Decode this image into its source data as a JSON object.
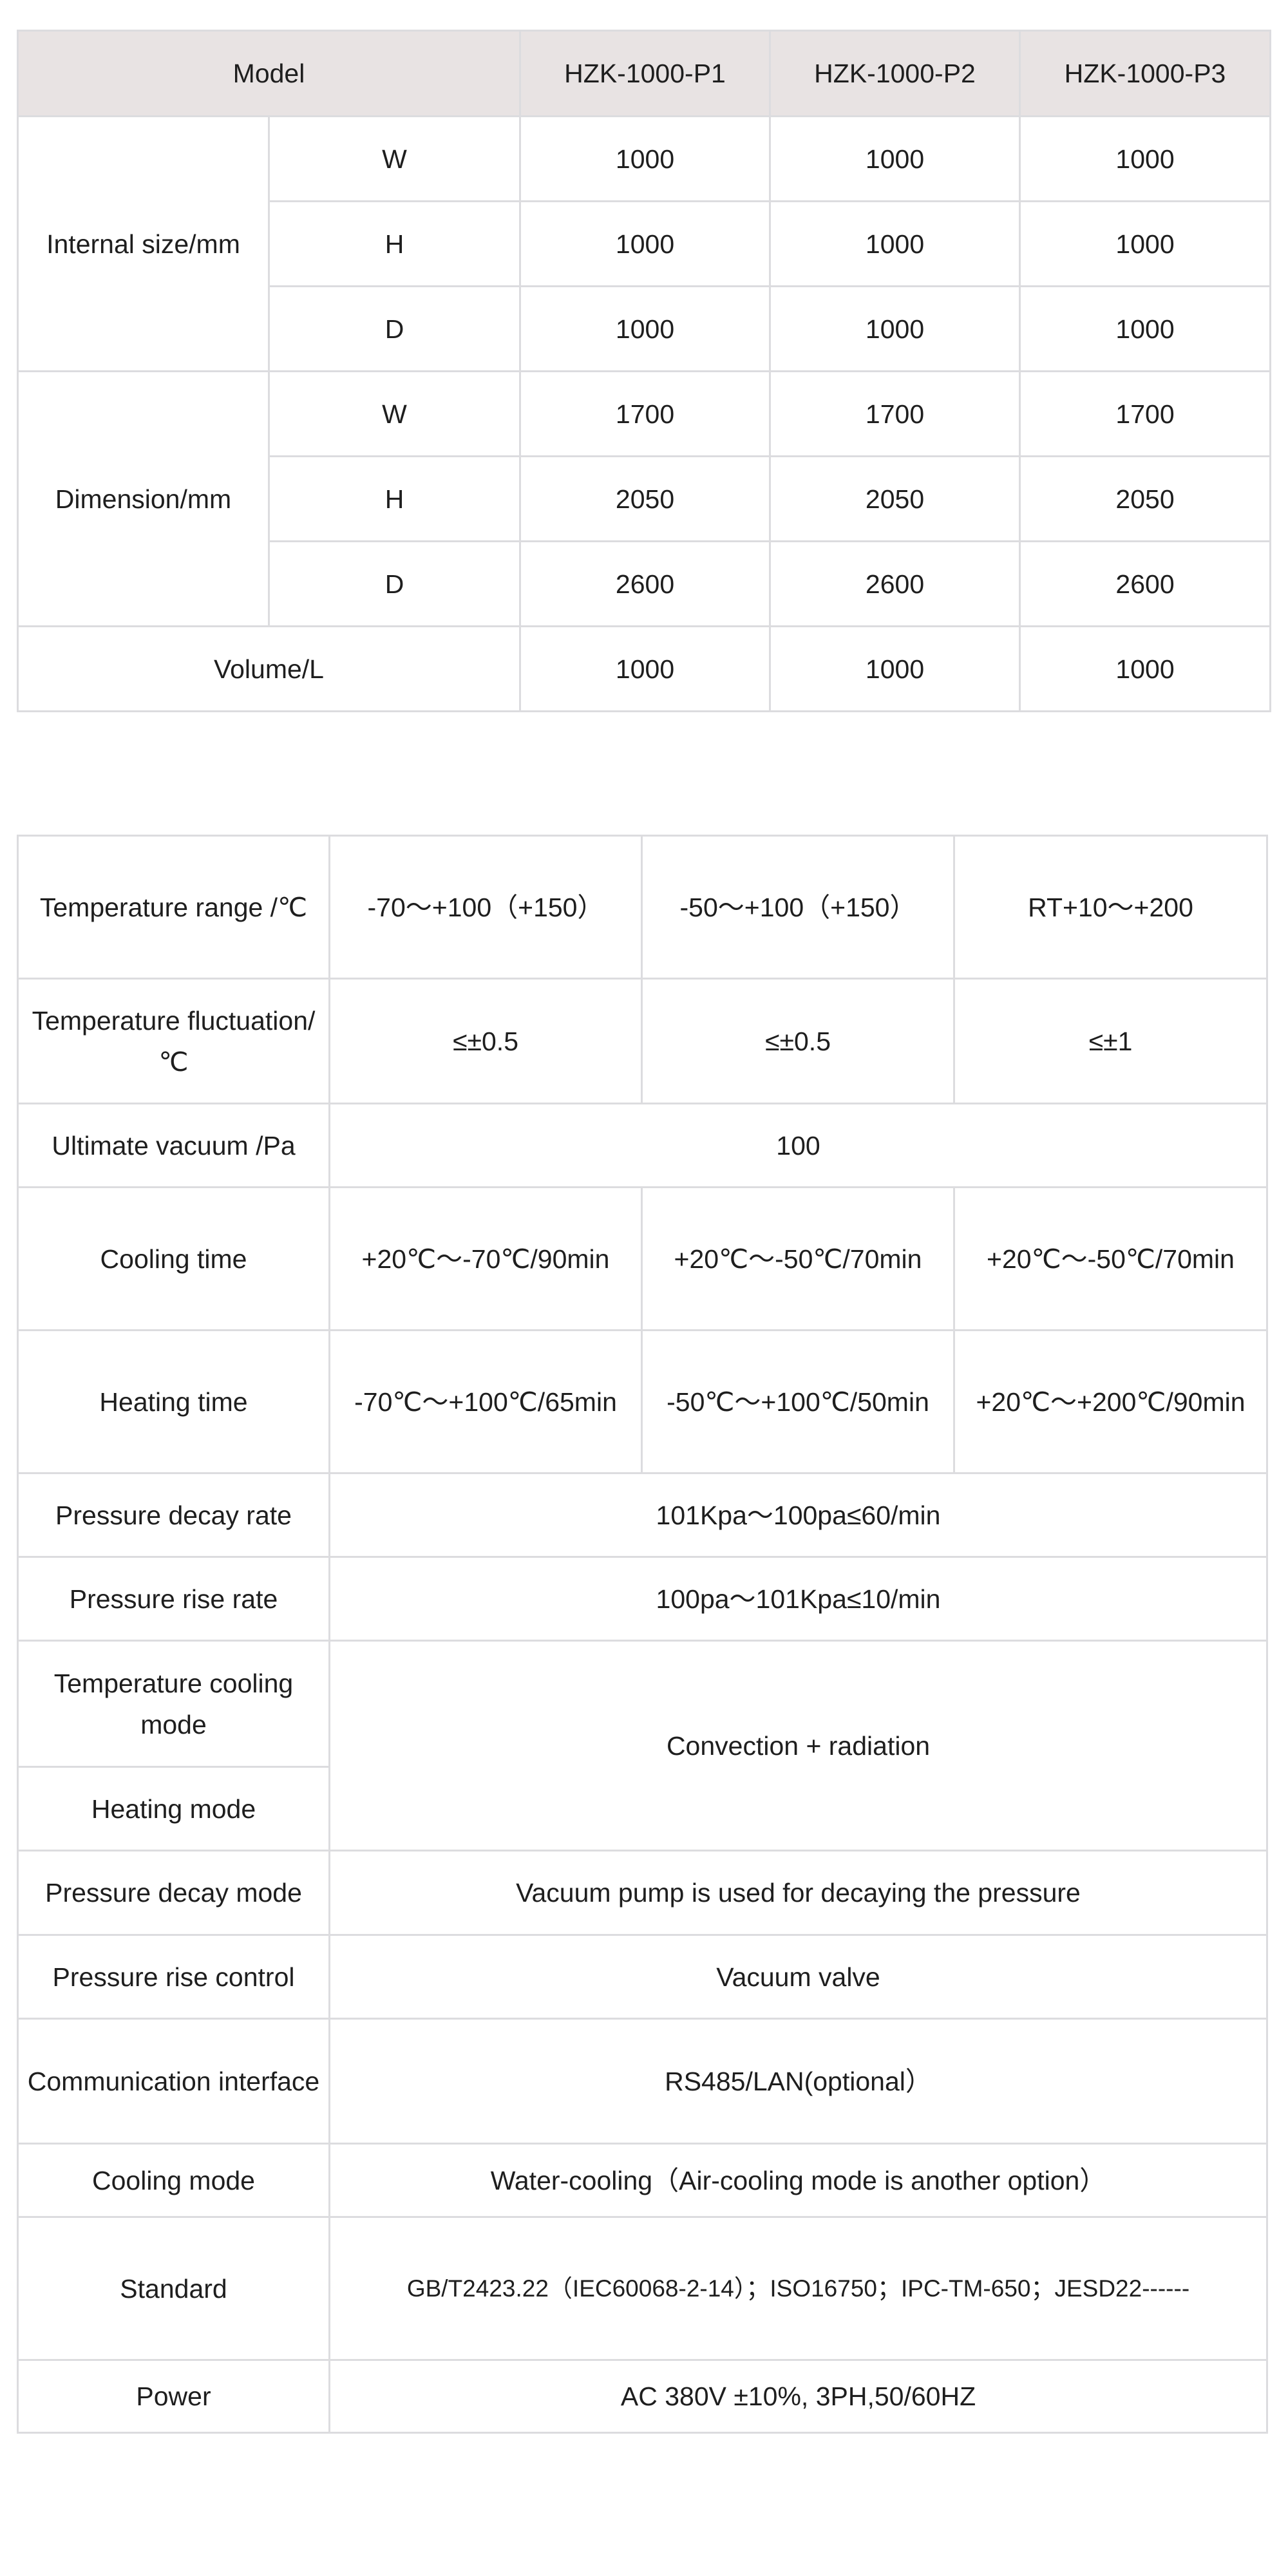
{
  "table1": {
    "header": {
      "model": "Model",
      "models": [
        "HZK-1000-P1",
        "HZK-1000-P2",
        "HZK-1000-P3"
      ]
    },
    "groups": [
      {
        "label": "Internal size/mm",
        "rows": [
          {
            "dim": "W",
            "values": [
              "1000",
              "1000",
              "1000"
            ]
          },
          {
            "dim": "H",
            "values": [
              "1000",
              "1000",
              "1000"
            ]
          },
          {
            "dim": "D",
            "values": [
              "1000",
              "1000",
              "1000"
            ]
          }
        ]
      },
      {
        "label": "Dimension/mm",
        "rows": [
          {
            "dim": "W",
            "values": [
              "1700",
              "1700",
              "1700"
            ]
          },
          {
            "dim": "H",
            "values": [
              "2050",
              "2050",
              "2050"
            ]
          },
          {
            "dim": "D",
            "values": [
              "2600",
              "2600",
              "2600"
            ]
          }
        ]
      }
    ],
    "volume": {
      "label": "Volume/L",
      "values": [
        "1000",
        "1000",
        "1000"
      ]
    }
  },
  "table2": {
    "temperature_range": {
      "label": "Temperature range /℃",
      "values": [
        "-70～+100（+150）",
        "-50～+100（+150）",
        "RT+10～+200"
      ]
    },
    "temperature_fluctuation": {
      "label": "Temperature fluctuation/℃",
      "values": [
        "≤±0.5",
        "≤±0.5",
        "≤±1"
      ]
    },
    "ultimate_vacuum": {
      "label": "Ultimate vacuum /Pa",
      "value": "100"
    },
    "cooling_time": {
      "label": "Cooling time",
      "values": [
        "+20℃～-70℃/90min",
        "+20℃～-50℃/70min",
        "+20℃～-50℃/70min"
      ]
    },
    "heating_time": {
      "label": "Heating time",
      "values": [
        "-70℃～+100℃/65min",
        "-50℃～+100℃/50min",
        "+20℃～+200℃/90min"
      ]
    },
    "pressure_decay_rate": {
      "label": "Pressure decay rate",
      "value": "101Kpa～100pa≤60/min"
    },
    "pressure_rise_rate": {
      "label": "Pressure rise rate",
      "value": "100pa～101Kpa≤10/min"
    },
    "temperature_cooling_mode": {
      "label": "Temperature cooling mode"
    },
    "heating_mode": {
      "label": "Heating mode"
    },
    "cooling_heating_value": "Convection + radiation",
    "pressure_decay_mode": {
      "label": "Pressure decay mode",
      "value": "Vacuum pump is used for decaying the pressure"
    },
    "pressure_rise_control": {
      "label": "Pressure rise control",
      "value": "Vacuum valve"
    },
    "communication_interface": {
      "label": "Communication interface",
      "value": "RS485/LAN(optional）"
    },
    "cooling_mode": {
      "label": "Cooling mode",
      "value": "Water-cooling（Air-cooling mode is another option）"
    },
    "standard": {
      "label": "Standard",
      "value": "GB/T2423.22（IEC60068-2-14）；ISO16750；IPC-TM-650；JESD22------"
    },
    "power": {
      "label": "Power",
      "value": "AC 380V ±10%, 3PH,50/60HZ"
    }
  },
  "colors": {
    "header_bg": "#e8e3e3",
    "border": "#dcdcdf",
    "text": "#1e1e1e"
  }
}
